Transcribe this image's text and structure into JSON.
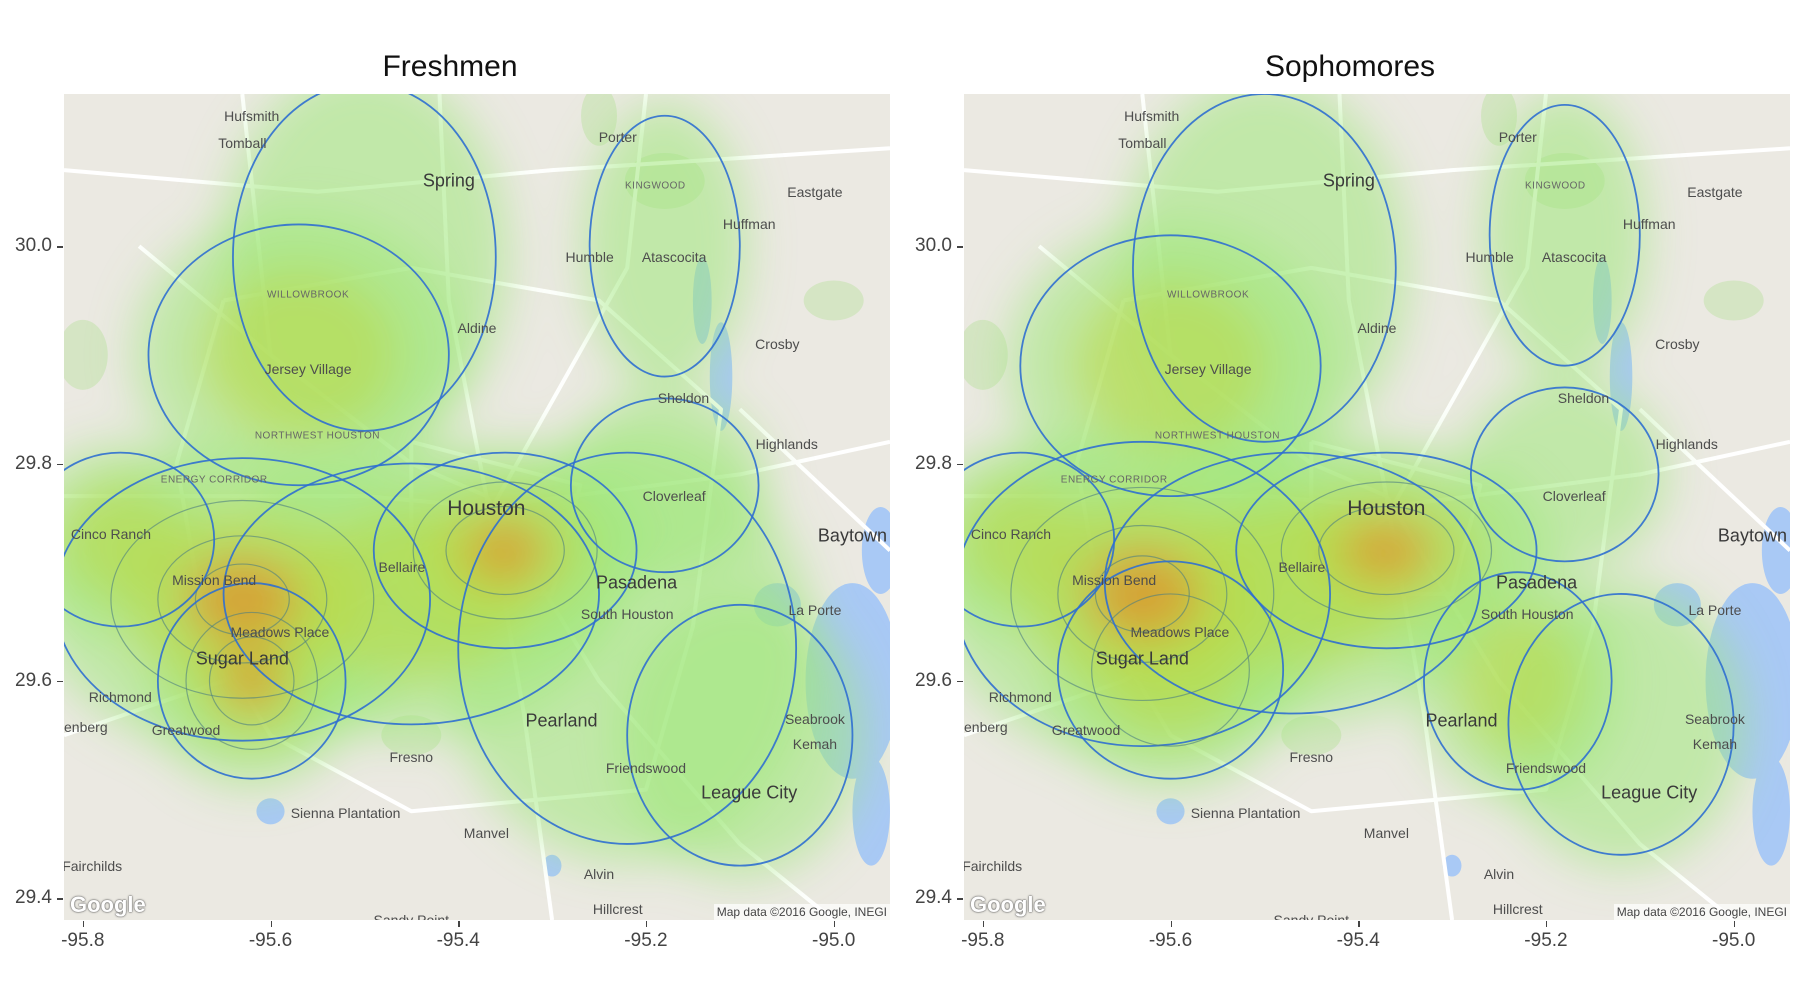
{
  "panels": [
    {
      "title": "Freshmen"
    },
    {
      "title": "Sophomores"
    }
  ],
  "axes": {
    "y_ticks": [
      "30.0",
      "29.8",
      "29.6",
      "29.4"
    ],
    "x_ticks": [
      "-95.8",
      "-95.6",
      "-95.4",
      "-95.2",
      "-95.0"
    ],
    "xlim": [
      -95.82,
      -94.94
    ],
    "ylim": [
      29.38,
      30.14
    ]
  },
  "map": {
    "attribution": "Map data ©2016 Google, INEGI",
    "logo_text": "Google",
    "places": [
      {
        "name": "Hufsmith",
        "lon": -95.62,
        "lat": 30.12,
        "size": "small"
      },
      {
        "name": "Tomball",
        "lon": -95.63,
        "lat": 30.095,
        "size": "small"
      },
      {
        "name": "Porter",
        "lon": -95.23,
        "lat": 30.1,
        "size": "small"
      },
      {
        "name": "Spring",
        "lon": -95.41,
        "lat": 30.06,
        "size": "big"
      },
      {
        "name": "Eastgate",
        "lon": -95.02,
        "lat": 30.05,
        "size": "small"
      },
      {
        "name": "KINGWOOD",
        "lon": -95.19,
        "lat": 30.055,
        "size": "dist"
      },
      {
        "name": "Huffman",
        "lon": -95.09,
        "lat": 30.02,
        "size": "small"
      },
      {
        "name": "Humble",
        "lon": -95.26,
        "lat": 29.99,
        "size": "small"
      },
      {
        "name": "Atascocita",
        "lon": -95.17,
        "lat": 29.99,
        "size": "small"
      },
      {
        "name": "WILLOWBROOK",
        "lon": -95.56,
        "lat": 29.955,
        "size": "dist"
      },
      {
        "name": "Aldine",
        "lon": -95.38,
        "lat": 29.925,
        "size": "small"
      },
      {
        "name": "Crosby",
        "lon": -95.06,
        "lat": 29.91,
        "size": "small"
      },
      {
        "name": "Jersey Village",
        "lon": -95.56,
        "lat": 29.887,
        "size": "small"
      },
      {
        "name": "Sheldon",
        "lon": -95.16,
        "lat": 29.86,
        "size": "small"
      },
      {
        "name": "NORTHWEST HOUSTON",
        "lon": -95.55,
        "lat": 29.825,
        "size": "dist"
      },
      {
        "name": "Highlands",
        "lon": -95.05,
        "lat": 29.818,
        "size": "small"
      },
      {
        "name": "ENERGY CORRIDOR",
        "lon": -95.66,
        "lat": 29.785,
        "size": "dist"
      },
      {
        "name": "Cloverleaf",
        "lon": -95.17,
        "lat": 29.77,
        "size": "small"
      },
      {
        "name": "Houston",
        "lon": -95.37,
        "lat": 29.758,
        "size": "huge"
      },
      {
        "name": "Cinco Ranch",
        "lon": -95.77,
        "lat": 29.735,
        "size": "small"
      },
      {
        "name": "Baytown",
        "lon": -94.98,
        "lat": 29.733,
        "size": "big"
      },
      {
        "name": "Bellaire",
        "lon": -95.46,
        "lat": 29.705,
        "size": "small"
      },
      {
        "name": "Mission Bend",
        "lon": -95.66,
        "lat": 29.693,
        "size": "small"
      },
      {
        "name": "Pasadena",
        "lon": -95.21,
        "lat": 29.69,
        "size": "big"
      },
      {
        "name": "South Houston",
        "lon": -95.22,
        "lat": 29.662,
        "size": "small"
      },
      {
        "name": "La Porte",
        "lon": -95.02,
        "lat": 29.665,
        "size": "small"
      },
      {
        "name": "Meadows Place",
        "lon": -95.59,
        "lat": 29.645,
        "size": "small"
      },
      {
        "name": "Sugar Land",
        "lon": -95.63,
        "lat": 29.62,
        "size": "big"
      },
      {
        "name": "Richmond",
        "lon": -95.76,
        "lat": 29.585,
        "size": "small"
      },
      {
        "name": "Rosenberg",
        "lon": -95.81,
        "lat": 29.558,
        "size": "small"
      },
      {
        "name": "Greatwood",
        "lon": -95.69,
        "lat": 29.555,
        "size": "small"
      },
      {
        "name": "Seabrook",
        "lon": -95.02,
        "lat": 29.565,
        "size": "small"
      },
      {
        "name": "Pearland",
        "lon": -95.29,
        "lat": 29.563,
        "size": "big"
      },
      {
        "name": "Fresno",
        "lon": -95.45,
        "lat": 29.53,
        "size": "small"
      },
      {
        "name": "Kemah",
        "lon": -95.02,
        "lat": 29.542,
        "size": "small"
      },
      {
        "name": "Friendswood",
        "lon": -95.2,
        "lat": 29.52,
        "size": "small"
      },
      {
        "name": "League City",
        "lon": -95.09,
        "lat": 29.497,
        "size": "big"
      },
      {
        "name": "Sienna Plantation",
        "lon": -95.52,
        "lat": 29.478,
        "size": "small"
      },
      {
        "name": "Manvel",
        "lon": -95.37,
        "lat": 29.46,
        "size": "small"
      },
      {
        "name": "Fairchilds",
        "lon": -95.79,
        "lat": 29.43,
        "size": "small"
      },
      {
        "name": "Alvin",
        "lon": -95.25,
        "lat": 29.422,
        "size": "small"
      },
      {
        "name": "Hillcrest",
        "lon": -95.23,
        "lat": 29.39,
        "size": "small"
      },
      {
        "name": "Sandy Point",
        "lon": -95.45,
        "lat": 29.38,
        "size": "small"
      }
    ]
  },
  "colors": {
    "contour_line": "#2f6fd0",
    "density_low": "#9fe87a",
    "density_mid": "#b9d94a",
    "density_high": "#e0902a",
    "water": "#a9c9f5",
    "road": "#ffffff"
  }
}
